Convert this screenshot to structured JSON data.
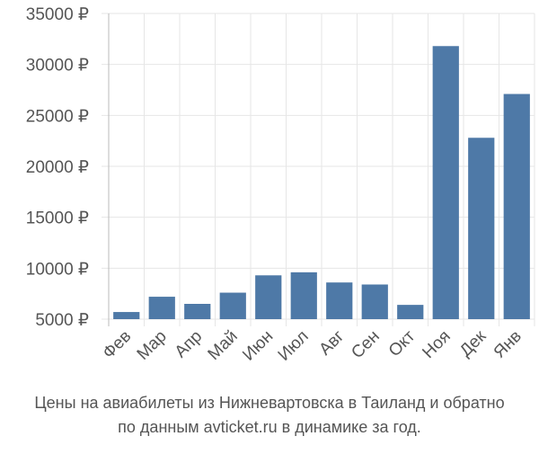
{
  "chart_data": {
    "type": "bar",
    "title": "Цены на авиабилеты из Нижневартовска в Таиланд и обратно",
    "subtitle": "по данным avticket.ru в динамике за год.",
    "categories": [
      "Фев",
      "Мар",
      "Апр",
      "Май",
      "Июн",
      "Июл",
      "Авг",
      "Сен",
      "Окт",
      "Ноя",
      "Дек",
      "Янв"
    ],
    "values": [
      5700,
      7200,
      6500,
      7600,
      9300,
      9600,
      8600,
      8400,
      6400,
      31800,
      22800,
      27100
    ],
    "color": "#4e79a7",
    "ylim": [
      5000,
      35000
    ],
    "yticks": [
      {
        "value": 5000,
        "label": "5000 ₽"
      },
      {
        "value": 10000,
        "label": "10000 ₽"
      },
      {
        "value": 15000,
        "label": "15000 ₽"
      },
      {
        "value": 20000,
        "label": "20000 ₽"
      },
      {
        "value": 25000,
        "label": "25000 ₽"
      },
      {
        "value": 30000,
        "label": "30000 ₽"
      },
      {
        "value": 35000,
        "label": "35000 ₽"
      }
    ],
    "grid": true
  }
}
